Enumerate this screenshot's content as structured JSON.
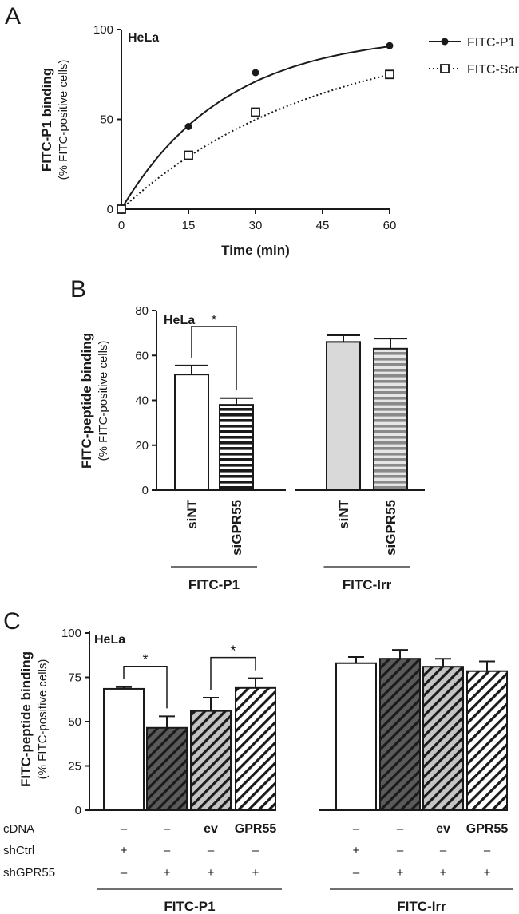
{
  "colors": {
    "ink": "#1a1a1a",
    "bar_white": "#ffffff",
    "bar_light_grey": "#d9d9d9",
    "bar_dark_grey": "#555555",
    "bar_mid_grey": "#bbbbbb",
    "hatch_grey": "#888888"
  },
  "panels": {
    "a": "A",
    "b": "B",
    "c": "C"
  },
  "chart_data": [
    {
      "type": "line",
      "panel": "A",
      "inset_label": "HeLa",
      "xlabel": "Time (min)",
      "ylabel": "FITC-P1 binding",
      "ylabel_sub": "(% FITC-positive cells)",
      "xlim": [
        0,
        60
      ],
      "ylim": [
        0,
        100
      ],
      "xticks": [
        0,
        15,
        30,
        45,
        60
      ],
      "yticks": [
        0,
        50,
        100
      ],
      "legend_position": "top-right",
      "series": [
        {
          "name": "FITC-P1",
          "marker": "filled-circle",
          "line": "solid",
          "x": [
            0,
            15,
            30,
            60
          ],
          "y": [
            0,
            46,
            76,
            91
          ],
          "fit_plateau": 98,
          "fit_rate": 0.043
        },
        {
          "name": "FITC-Scr",
          "marker": "open-square",
          "line": "dotted",
          "x": [
            0,
            15,
            30,
            60
          ],
          "y": [
            0,
            30,
            54,
            75
          ],
          "fit_plateau": 100,
          "fit_rate": 0.023
        }
      ]
    },
    {
      "type": "bar",
      "panel": "B",
      "inset_label": "HeLa",
      "ylabel": "FITC-peptide binding",
      "ylabel_sub": "(% FITC-positive cells)",
      "ylim": [
        0,
        80
      ],
      "yticks": [
        0,
        20,
        40,
        60,
        80
      ],
      "bars": [
        {
          "label": "siNT",
          "value": 51.5,
          "error": 4,
          "fill": "white"
        },
        {
          "label": "siGPR55",
          "value": 38,
          "error": 3,
          "fill": "horizontal-stripes-black"
        },
        {
          "label": "siNT",
          "value": 66,
          "error": 3,
          "fill": "light-grey"
        },
        {
          "label": "siGPR55",
          "value": 63,
          "error": 4.5,
          "fill": "horizontal-stripes-grey"
        }
      ],
      "groups": [
        {
          "label": "FITC-P1",
          "bars": [
            0,
            1
          ]
        },
        {
          "label": "FITC-Irr",
          "bars": [
            2,
            3
          ]
        }
      ],
      "significance": [
        {
          "between": [
            0,
            1
          ],
          "label": "*"
        }
      ]
    },
    {
      "type": "bar",
      "panel": "C",
      "inset_label": "HeLa",
      "ylabel": "FITC-peptide binding",
      "ylabel_sub": "(% FITC-positive cells)",
      "ylim": [
        0,
        100
      ],
      "yticks": [
        0,
        25,
        50,
        75,
        100
      ],
      "bars": [
        {
          "value": 68.5,
          "error": 1,
          "fill": "white"
        },
        {
          "value": 46.5,
          "error": 6.5,
          "fill": "dark-grey-diagonal"
        },
        {
          "value": 56,
          "error": 7.5,
          "fill": "mid-grey-diagonal"
        },
        {
          "value": 69,
          "error": 5.5,
          "fill": "white-diagonal"
        },
        {
          "value": 83,
          "error": 3.5,
          "fill": "white"
        },
        {
          "value": 85.5,
          "error": 5,
          "fill": "dark-grey-diagonal"
        },
        {
          "value": 81,
          "error": 4.5,
          "fill": "mid-grey-diagonal"
        },
        {
          "value": 78.5,
          "error": 5.5,
          "fill": "white-diagonal"
        }
      ],
      "conditions": [
        {
          "label": "cDNA",
          "values": [
            "–",
            "–",
            "ev",
            "GPR55",
            "–",
            "–",
            "ev",
            "GPR55"
          ]
        },
        {
          "label": "shCtrl",
          "values": [
            "+",
            "–",
            "–",
            "–",
            "+",
            "–",
            "–",
            "–"
          ]
        },
        {
          "label": "shGPR55",
          "values": [
            "–",
            "+",
            "+",
            "+",
            "–",
            "+",
            "+",
            "+"
          ]
        }
      ],
      "groups": [
        {
          "label": "FITC-P1",
          "bars": [
            0,
            3
          ]
        },
        {
          "label": "FITC-Irr",
          "bars": [
            4,
            7
          ]
        }
      ],
      "significance": [
        {
          "between": [
            0,
            1
          ],
          "label": "*"
        },
        {
          "between": [
            2,
            3
          ],
          "label": "*"
        }
      ]
    }
  ]
}
